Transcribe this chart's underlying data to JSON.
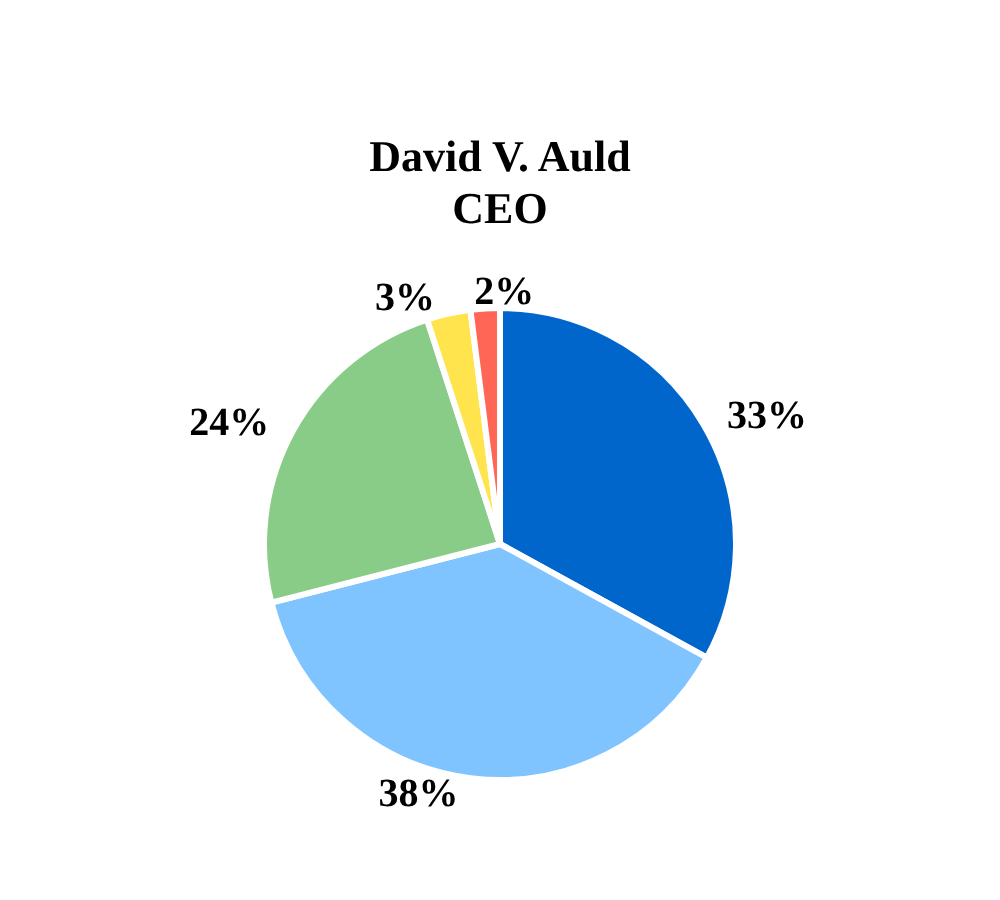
{
  "chart_data": {
    "type": "pie",
    "title": "David V. Auld",
    "subtitle": "CEO",
    "categories": [
      null,
      null,
      null,
      null,
      null
    ],
    "values": [
      33,
      38,
      24,
      3,
      2
    ],
    "value_labels": [
      "33%",
      "38%",
      "24%",
      "3%",
      "2%"
    ],
    "colors": [
      "#0066cc",
      "#80c4ff",
      "#88cc88",
      "#ffe44d",
      "#ff6655"
    ]
  }
}
